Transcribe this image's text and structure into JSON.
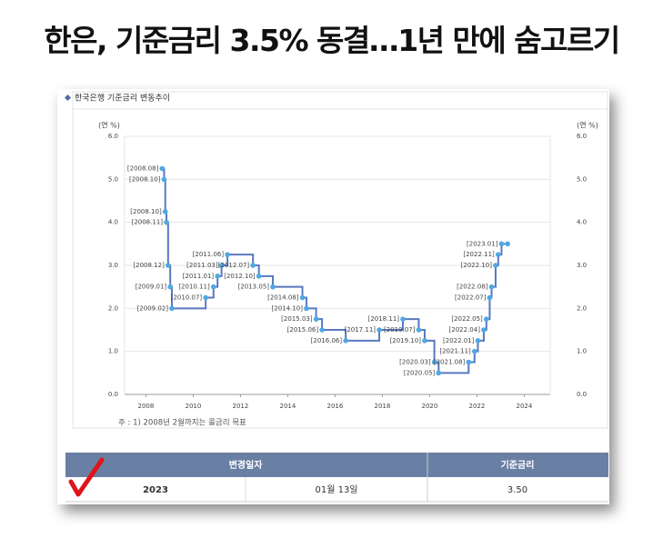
{
  "header": {
    "title": "한은, 기준금리 3.5% 동결…1년 만에 숨고르기"
  },
  "panel_title": "한국은행 기준금리 변동추이",
  "chart_data": {
    "type": "line",
    "step": true,
    "y_label": "(연 %)",
    "note": "주 : 1) 2008년 2월까지는 콜금리 목표",
    "color": "#5a78c0",
    "marker_color": "#4ea8e2",
    "grid": true,
    "x": [
      2008.69,
      2008.77,
      2008.82,
      2008.87,
      2008.94,
      2009.03,
      2009.1,
      2010.53,
      2010.86,
      2011.03,
      2011.2,
      2011.45,
      2012.53,
      2012.78,
      2013.37,
      2014.62,
      2014.79,
      2015.2,
      2015.45,
      2016.45,
      2017.87,
      2018.87,
      2019.54,
      2019.79,
      2020.2,
      2020.38,
      2021.65,
      2021.9,
      2022.04,
      2022.29,
      2022.4,
      2022.54,
      2022.62,
      2022.79,
      2022.9,
      2023.04,
      2023.3
    ],
    "values": [
      5.25,
      5.0,
      4.25,
      4.0,
      3.0,
      2.5,
      2.0,
      2.25,
      2.5,
      2.75,
      3.0,
      3.25,
      3.0,
      2.75,
      2.5,
      2.25,
      2.0,
      1.75,
      1.5,
      1.25,
      1.5,
      1.75,
      1.5,
      1.25,
      0.75,
      0.5,
      0.75,
      1.0,
      1.25,
      1.5,
      1.75,
      2.25,
      2.5,
      3.0,
      3.25,
      3.5,
      3.5
    ],
    "point_labels": [
      "[2008.08]",
      "[2008.10]",
      "[2008.10]",
      "[2008.11]",
      "[2008.12]",
      "[2009.01]",
      "[2009.02]",
      "[2010.07]",
      "[2010.11]",
      "[2011.01]",
      "[2011.03]",
      "[2011.06]",
      "[2012.07]",
      "[2012.10]",
      "[2013.05]",
      "[2014.08]",
      "[2014.10]",
      "[2015.03]",
      "[2015.06]",
      "[2016.06]",
      "[2017.11]",
      "[2018.11]",
      "[2019.07]",
      "[2019.10]",
      "[2020.03]",
      "[2020.05]",
      "[2021.08]",
      "[2021.11]",
      "[2022.01]",
      "[2022.04]",
      "[2022.05]",
      "[2022.07]",
      "[2022.08]",
      "[2022.10]",
      "[2022.11]",
      "[2023.01]",
      null
    ],
    "xlim": [
      2007.1,
      2025.1
    ],
    "xticks": [
      2008,
      2010,
      2012,
      2014,
      2016,
      2018,
      2020,
      2022,
      2024
    ],
    "ylim": [
      0,
      6
    ],
    "yticks": [
      {
        "value": 0,
        "label": "0.0"
      },
      {
        "value": 1,
        "label": "1.0"
      },
      {
        "value": 2,
        "label": "2.0"
      },
      {
        "value": 3,
        "label": "3.0"
      },
      {
        "value": 4,
        "label": "4.0"
      },
      {
        "value": 5,
        "label": "5.0"
      },
      {
        "value": 6,
        "label": "6.0"
      }
    ]
  },
  "table": {
    "columns": [
      "변경일자",
      "기준금리"
    ],
    "rows": [
      [
        "2023",
        "01월 13일",
        "3.50"
      ]
    ]
  }
}
